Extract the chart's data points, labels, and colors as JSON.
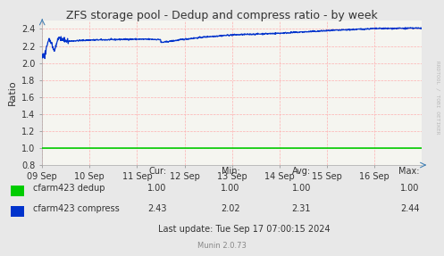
{
  "title": "ZFS storage pool - Dedup and compress ratio - by week",
  "ylabel": "Ratio",
  "ylim": [
    0.8,
    2.5
  ],
  "yticks": [
    0.8,
    1.0,
    1.2,
    1.4,
    1.6,
    1.8,
    2.0,
    2.2,
    2.4
  ],
  "bg_color": "#e8e8e8",
  "plot_bg_color": "#f5f5f0",
  "dedup_color": "#00cc00",
  "compress_color": "#0033cc",
  "stats": {
    "dedup": {
      "cur": "1.00",
      "min": "1.00",
      "avg": "1.00",
      "max": "1.00"
    },
    "compress": {
      "cur": "2.43",
      "min": "2.02",
      "avg": "2.31",
      "max": "2.44"
    }
  },
  "last_update": "Last update: Tue Sep 17 07:00:15 2024",
  "munin_version": "Munin 2.0.73",
  "watermark": "RRDTOOL / TOBI OETIKER",
  "xtick_labels": [
    "09 Sep",
    "10 Sep",
    "11 Sep",
    "12 Sep",
    "13 Sep",
    "14 Sep",
    "15 Sep",
    "16 Sep"
  ],
  "xtick_positions": [
    0,
    1,
    2,
    3,
    4,
    5,
    6,
    7
  ],
  "xlim": [
    0,
    8
  ]
}
